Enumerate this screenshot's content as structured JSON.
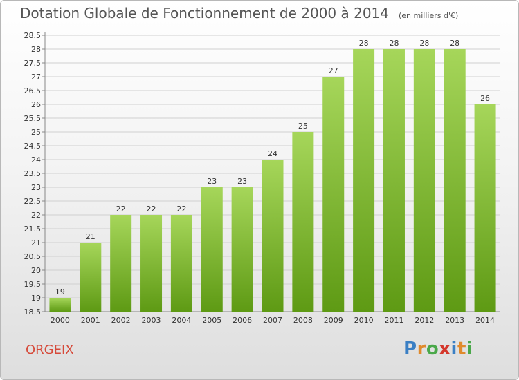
{
  "title": "Dotation Globale de Fonctionnement de 2000 à 2014",
  "unit_note": "(en milliers d'€)",
  "commune": "ORGEIX",
  "brand": {
    "letters": [
      "P",
      "r",
      "o",
      "x",
      "i",
      "t",
      "i"
    ],
    "colors": [
      "#3a7fc4",
      "#e08a2c",
      "#4aa84a",
      "#d4372c",
      "#3a7fc4",
      "#e08a2c",
      "#4aa84a"
    ]
  },
  "colors": {
    "bar_top": "#a6d65a",
    "bar_bottom": "#5e9a14",
    "title": "#555555",
    "commune": "#d64a3a"
  },
  "chart_data": {
    "type": "bar",
    "categories": [
      "2000",
      "2001",
      "2002",
      "2003",
      "2004",
      "2005",
      "2006",
      "2007",
      "2008",
      "2009",
      "2010",
      "2011",
      "2012",
      "2013",
      "2014"
    ],
    "values": [
      19,
      21,
      22,
      22,
      22,
      23,
      23,
      24,
      25,
      27,
      28,
      28,
      28,
      28,
      26
    ],
    "data_labels": [
      "19",
      "21",
      "22",
      "22",
      "22",
      "23",
      "23",
      "24",
      "25",
      "27",
      "28",
      "28",
      "28",
      "28",
      "26"
    ],
    "ylim": [
      18.5,
      28.5
    ],
    "y_ticks": [
      "18.5",
      "19",
      "19.5",
      "20",
      "20.5",
      "21",
      "21.5",
      "22",
      "22.5",
      "23",
      "23.5",
      "24",
      "24.5",
      "25",
      "25.5",
      "26",
      "26.5",
      "27",
      "27.5",
      "28",
      "28.5"
    ],
    "grid": true,
    "xlabel": "",
    "ylabel": ""
  }
}
